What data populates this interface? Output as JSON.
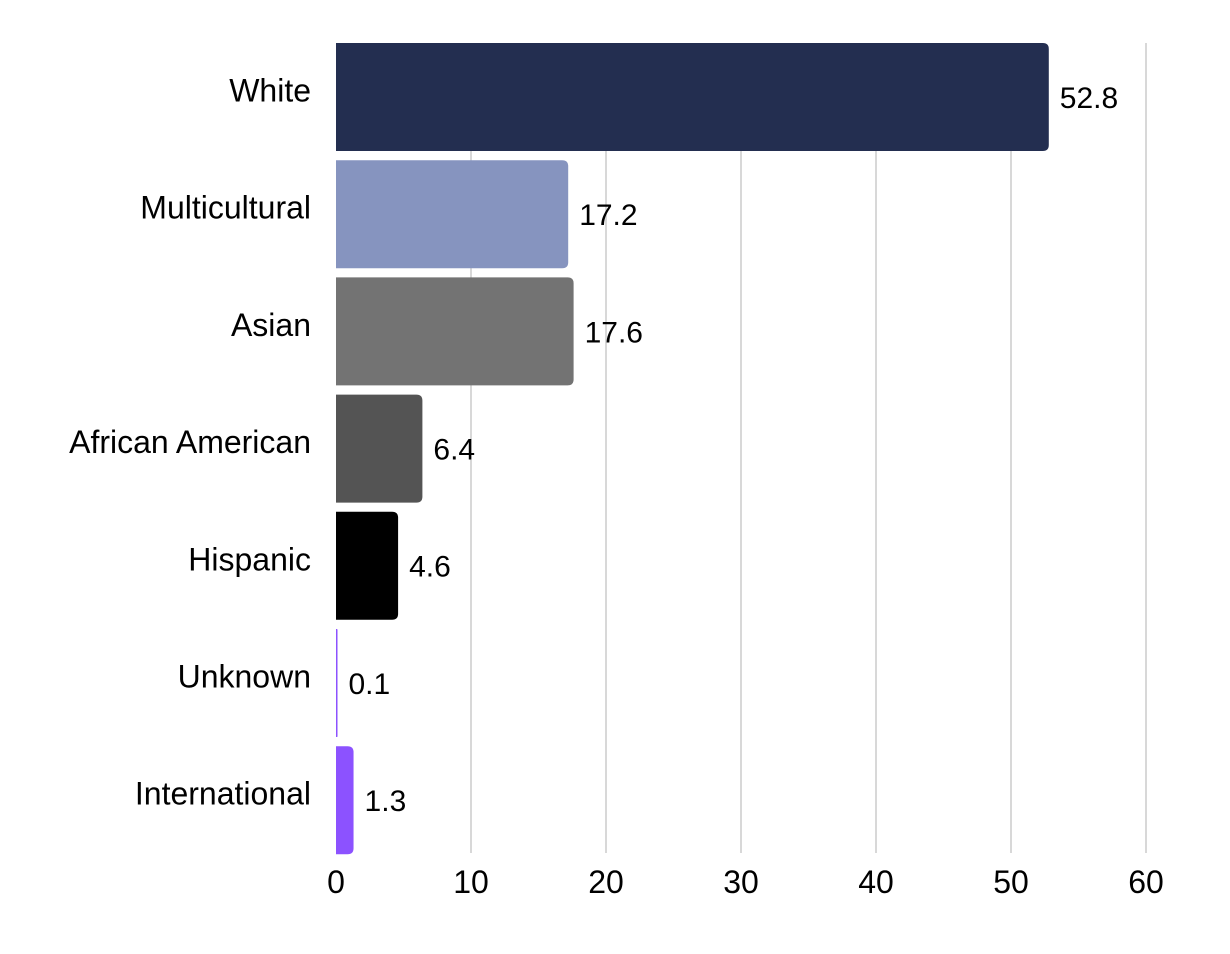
{
  "chart_data": {
    "type": "bar",
    "orientation": "horizontal",
    "title": "",
    "xlabel": "",
    "ylabel": "",
    "categories": [
      "White",
      "Multicultural",
      "Asian",
      "African American",
      "Hispanic",
      "Unknown",
      "International"
    ],
    "values": [
      52.8,
      17.2,
      17.6,
      6.4,
      4.6,
      0.1,
      1.3
    ],
    "value_labels": [
      "52.8",
      "17.2",
      "17.6",
      "6.4",
      "4.6",
      "0.1",
      "1.3"
    ],
    "colors": [
      "#232e50",
      "#8694bf",
      "#737373",
      "#545454",
      "#000000",
      "#8c52ff",
      "#8c52ff"
    ],
    "xlim": [
      0,
      60
    ],
    "x_ticks": [
      0,
      10,
      20,
      30,
      40,
      50,
      60
    ],
    "x_tick_labels": [
      "0",
      "10",
      "20",
      "30",
      "40",
      "50",
      "60"
    ],
    "grid": "vertical",
    "legend": "none"
  }
}
